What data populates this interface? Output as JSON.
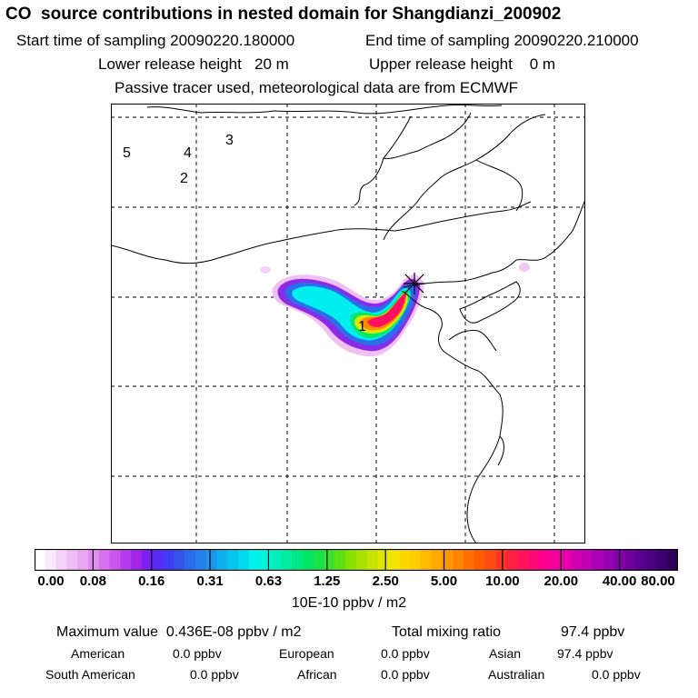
{
  "header": {
    "title": "CO  source contributions in nested domain for Shangdianzi_200902",
    "start_label": "Start time of sampling 20090220.180000",
    "end_label": "End time of sampling 20090220.210000",
    "lower_label": "Lower release height   20 m",
    "upper_label": "Upper release height    0 m",
    "info": "Passive tracer used, meteorological data are from ECMWF"
  },
  "map": {
    "region_labels": [
      "1",
      "2",
      "3",
      "4",
      "5"
    ],
    "receptor_marker": "star-cross-icon"
  },
  "legend": {
    "ticks": [
      "0.00",
      "0.08",
      "0.16",
      "0.31",
      "0.63",
      "1.25",
      "2.50",
      "5.00",
      "10.00",
      "20.00",
      "40.00",
      "80.00"
    ],
    "unit": "10E-10 ppbv / m2",
    "colors": [
      "#ffffff",
      "#fbeafc",
      "#f5d3f8",
      "#efbcf5",
      "#eaa6f2",
      "#e28ef0",
      "#d671ee",
      "#c955ec",
      "#b73aea",
      "#a323e8",
      "#7d20f2",
      "#5a2af5",
      "#3f3df2",
      "#3355ee",
      "#2b6bea",
      "#2480ea",
      "#1b98ec",
      "#10b0ee",
      "#06c6ef",
      "#00dbee",
      "#00f0ea",
      "#00f5d6",
      "#00f0bb",
      "#00eca0",
      "#00e884",
      "#00e666",
      "#18e44a",
      "#3ae22e",
      "#5ee012",
      "#88e000",
      "#a8e200",
      "#c6e400",
      "#dee600",
      "#f0e400",
      "#fcd800",
      "#ffcc00",
      "#ffbb00",
      "#ffa800",
      "#ff9600",
      "#ff8400",
      "#ff7000",
      "#ff5e00",
      "#ff4a12",
      "#ff3526",
      "#ff2240",
      "#ff1458",
      "#ff0a72",
      "#fd008c",
      "#f400a0",
      "#e600ac",
      "#d400b4",
      "#c000b6",
      "#ac00b4",
      "#9600b0",
      "#8200a8",
      "#6e009c",
      "#5a0090",
      "#4a0080",
      "#3c006e",
      "#2e005c"
    ]
  },
  "stats": {
    "max_label": "Maximum value  0.436E-08 ppbv / m2",
    "total_label": "Total mixing ratio",
    "total_value": "97.4 ppbv"
  },
  "regions": [
    {
      "name": "American",
      "value": "0.0 ppbv"
    },
    {
      "name": "European",
      "value": "0.0 ppbv"
    },
    {
      "name": "Asian",
      "value": "97.4 ppbv"
    },
    {
      "name": "South American",
      "value": "0.0 ppbv"
    },
    {
      "name": "African",
      "value": "0.0 ppbv"
    },
    {
      "name": "Australian",
      "value": "0.0 ppbv"
    }
  ]
}
